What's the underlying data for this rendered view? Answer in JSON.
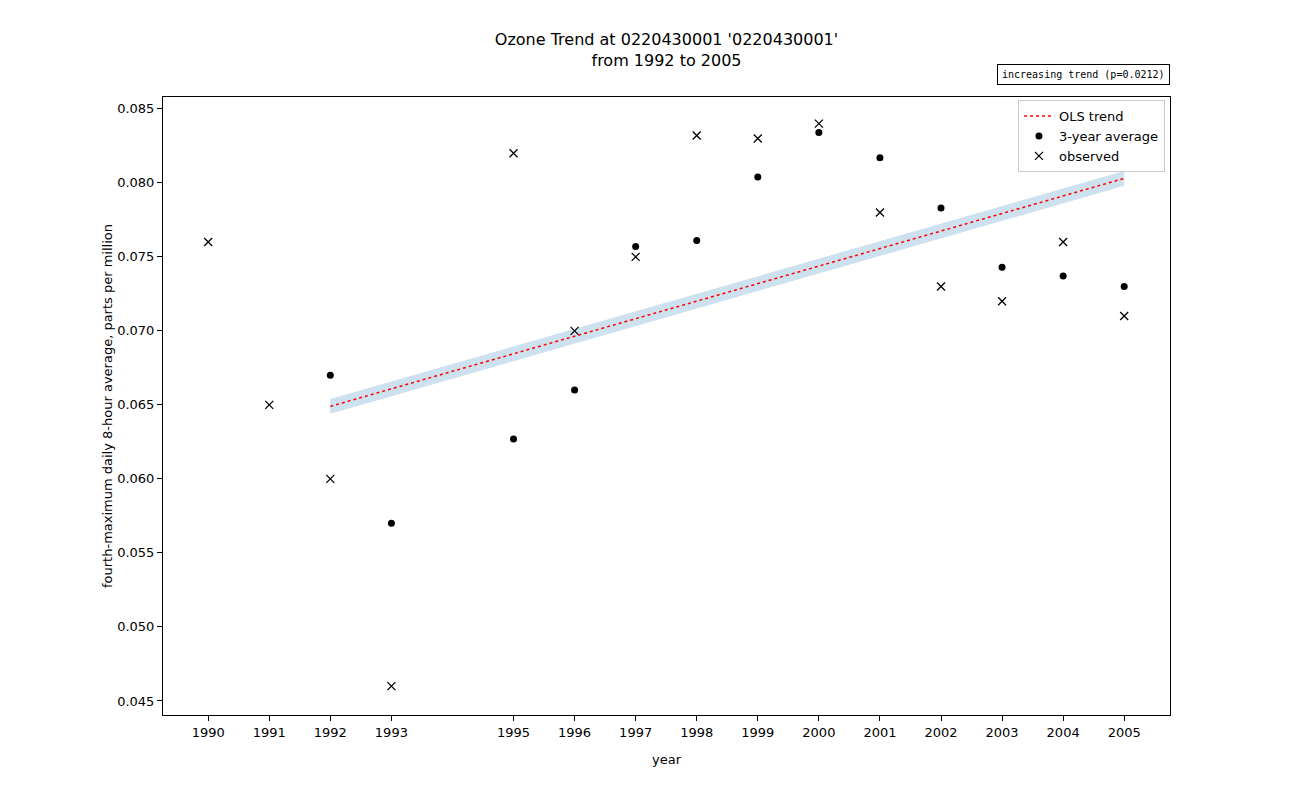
{
  "chart_data": {
    "type": "scatter",
    "title": "Ozone Trend at 0220430001 '0220430001'",
    "subtitle": "from 1992 to 2005",
    "annotations": [
      "increasing trend (p=0.0212)"
    ],
    "x_label": "year",
    "y_label": "fourth-maximum daily 8-hour average, parts per million",
    "xlim": [
      1989.26,
      2005.75
    ],
    "xticks": [
      1990,
      1991,
      1992,
      1993,
      1995,
      1996,
      1997,
      1998,
      1999,
      2000,
      2001,
      2002,
      2003,
      2004,
      2005
    ],
    "ylim": [
      0.04405,
      0.0858
    ],
    "yticks": [
      0.045,
      {
        "value": 0.05,
        "label": "0.050"
      },
      0.055,
      {
        "value": 0.06,
        "label": "0.060"
      },
      0.065,
      {
        "value": 0.07,
        "label": "0.070"
      },
      0.075,
      {
        "value": 0.08,
        "label": "0.080"
      },
      0.085
    ],
    "grid": false,
    "legend": "upper right",
    "series": [
      {
        "name": "observed",
        "type": "scatter",
        "marker": "x",
        "color": "#000000",
        "x": [
          1990,
          1991,
          1992,
          1993,
          1995,
          1996,
          1997,
          1998,
          1999,
          2000,
          2001,
          2002,
          2003,
          2004,
          2005
        ],
        "values": [
          0.076,
          0.065,
          0.06,
          0.046,
          0.082,
          0.07,
          0.075,
          0.0832,
          0.083,
          0.084,
          0.078,
          0.073,
          0.072,
          0.076,
          0.071
        ]
      },
      {
        "name": "3-year average",
        "type": "scatter",
        "marker": "circle",
        "color": "#000000",
        "x": [
          1992,
          1993,
          1995,
          1996,
          1997,
          1998,
          1999,
          2000,
          2001,
          2002,
          2003,
          2004,
          2005
        ],
        "values": [
          0.067,
          0.057,
          0.0627,
          0.066,
          0.0757,
          0.0761,
          0.0804,
          0.0834,
          0.0817,
          0.0783,
          0.0743,
          0.0737,
          0.073
        ]
      },
      {
        "name": "OLS trend",
        "type": "line",
        "line_style": "dotted",
        "color": "#ff0000",
        "x": [
          1992,
          2005
        ],
        "values": [
          0.0649,
          0.0803
        ],
        "lower": [
          0.0644,
          0.0798
        ],
        "upper": [
          0.0654,
          0.0808
        ]
      }
    ]
  }
}
